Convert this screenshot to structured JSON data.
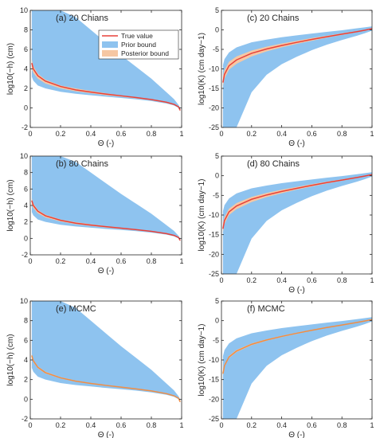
{
  "colors": {
    "prior": "#8ec3ef",
    "posterior": "#f6c7a3",
    "true": "#e8413a",
    "mcmc": "#ef8d45",
    "axis": "#262626"
  },
  "chart_data": [
    {
      "id": "a",
      "type": "area",
      "title": "(a) 20 Chians",
      "xlabel": "Θ (-)",
      "ylabel": "log10(−h) (cm)",
      "xlim": [
        0,
        1
      ],
      "ylim": [
        -2,
        10
      ],
      "xticks": [
        "0",
        "0.2",
        "0.4",
        "0.6",
        "0.8",
        "1"
      ],
      "yticks": [
        "-2",
        "0",
        "2",
        "4",
        "6",
        "8",
        "10"
      ],
      "legend": {
        "position": "top-right",
        "entries": [
          "True value",
          "Prior bound",
          "Posterior bound"
        ]
      },
      "x": [
        0.01,
        0.02,
        0.05,
        0.1,
        0.2,
        0.3,
        0.4,
        0.5,
        0.6,
        0.7,
        0.8,
        0.9,
        0.95,
        0.98,
        0.99
      ],
      "series": [
        {
          "name": "Prior bound",
          "kind": "band",
          "lower": [
            3.2,
            2.8,
            2.3,
            2.0,
            1.65,
            1.45,
            1.3,
            1.15,
            1.02,
            0.88,
            0.7,
            0.45,
            0.25,
            0.0,
            -0.3
          ],
          "upper": [
            10,
            10,
            10,
            10,
            10,
            9.3,
            8.0,
            6.7,
            5.4,
            4.2,
            3.0,
            1.6,
            0.9,
            0.3,
            0.0
          ]
        },
        {
          "name": "Posterior bound",
          "kind": "band",
          "lower": [
            4.0,
            3.6,
            3.0,
            2.5,
            2.0,
            1.7,
            1.5,
            1.3,
            1.15,
            0.98,
            0.8,
            0.52,
            0.3,
            0.05,
            -0.35
          ],
          "upper": [
            5.0,
            4.3,
            3.5,
            2.9,
            2.3,
            2.0,
            1.75,
            1.5,
            1.3,
            1.1,
            0.9,
            0.62,
            0.4,
            0.15,
            -0.2
          ]
        },
        {
          "name": "True value",
          "kind": "line",
          "values": [
            4.6,
            4.0,
            3.3,
            2.75,
            2.2,
            1.85,
            1.62,
            1.42,
            1.24,
            1.06,
            0.86,
            0.58,
            0.36,
            0.1,
            -0.25
          ]
        }
      ]
    },
    {
      "id": "b",
      "type": "area",
      "title": "(b) 80 Chains",
      "xlabel": "Θ (-)",
      "ylabel": "log10(−h) (cm)",
      "xlim": [
        0,
        1
      ],
      "ylim": [
        -2,
        10
      ],
      "xticks": [
        "0",
        "0.2",
        "0.4",
        "0.6",
        "0.8",
        "1"
      ],
      "yticks": [
        "-2",
        "0",
        "2",
        "4",
        "6",
        "8",
        "10"
      ],
      "x": [
        0.01,
        0.02,
        0.05,
        0.1,
        0.2,
        0.3,
        0.4,
        0.5,
        0.6,
        0.7,
        0.8,
        0.9,
        0.95,
        0.98,
        0.99
      ],
      "series": [
        {
          "name": "Prior bound",
          "kind": "band",
          "lower": [
            3.2,
            2.8,
            2.3,
            2.0,
            1.65,
            1.45,
            1.3,
            1.15,
            1.02,
            0.88,
            0.7,
            0.45,
            0.25,
            0.0,
            -0.3
          ],
          "upper": [
            10,
            10,
            10,
            10,
            10,
            9.3,
            8.0,
            6.7,
            5.4,
            4.2,
            3.0,
            1.6,
            0.9,
            0.3,
            0.0
          ]
        },
        {
          "name": "Posterior bound",
          "kind": "band",
          "lower": [
            4.1,
            3.7,
            3.05,
            2.55,
            2.05,
            1.73,
            1.52,
            1.32,
            1.16,
            0.99,
            0.81,
            0.53,
            0.31,
            0.06,
            -0.34
          ],
          "upper": [
            4.9,
            4.25,
            3.45,
            2.88,
            2.3,
            1.97,
            1.72,
            1.5,
            1.3,
            1.1,
            0.9,
            0.62,
            0.4,
            0.14,
            -0.2
          ]
        },
        {
          "name": "True value",
          "kind": "line",
          "values": [
            4.6,
            4.0,
            3.3,
            2.75,
            2.2,
            1.85,
            1.62,
            1.42,
            1.24,
            1.06,
            0.86,
            0.58,
            0.36,
            0.1,
            -0.25
          ]
        }
      ]
    },
    {
      "id": "e",
      "type": "area",
      "title": "(e) MCMC",
      "xlabel": "Θ (-)",
      "ylabel": "log10(−h) (cm)",
      "xlim": [
        0,
        1
      ],
      "ylim": [
        -2,
        10
      ],
      "xticks": [
        "0",
        "0.2",
        "0.4",
        "0.6",
        "0.8",
        "1"
      ],
      "yticks": [
        "-2",
        "0",
        "2",
        "4",
        "6",
        "8",
        "10"
      ],
      "x": [
        0.01,
        0.02,
        0.05,
        0.1,
        0.2,
        0.3,
        0.4,
        0.5,
        0.6,
        0.7,
        0.8,
        0.9,
        0.95,
        0.98,
        0.99
      ],
      "series": [
        {
          "name": "Prior bound",
          "kind": "band",
          "lower": [
            3.2,
            2.8,
            2.3,
            2.0,
            1.65,
            1.45,
            1.3,
            1.15,
            1.02,
            0.88,
            0.7,
            0.45,
            0.25,
            0.0,
            -0.3
          ],
          "upper": [
            10,
            10,
            10,
            10,
            10,
            9.3,
            8.0,
            6.7,
            5.4,
            4.2,
            3.0,
            1.6,
            0.9,
            0.3,
            0.0
          ]
        },
        {
          "name": "Posterior bound",
          "kind": "band",
          "lower": [
            4.3,
            3.8,
            3.15,
            2.62,
            2.12,
            1.79,
            1.57,
            1.37,
            1.2,
            1.02,
            0.83,
            0.55,
            0.33,
            0.07,
            -0.32
          ],
          "upper": [
            4.6,
            4.05,
            3.35,
            2.8,
            2.25,
            1.9,
            1.66,
            1.46,
            1.27,
            1.08,
            0.88,
            0.6,
            0.38,
            0.12,
            -0.22
          ]
        },
        {
          "name": "True value",
          "kind": "line",
          "color": "mcmc",
          "values": [
            4.45,
            3.92,
            3.25,
            2.71,
            2.18,
            1.84,
            1.61,
            1.41,
            1.23,
            1.05,
            0.85,
            0.57,
            0.35,
            0.1,
            -0.27
          ]
        }
      ]
    },
    {
      "id": "c",
      "type": "area",
      "title": "(c) 20 Chains",
      "xlabel": "Θ (-)",
      "ylabel": "log10(K) (cm day−1)",
      "xlim": [
        0,
        1
      ],
      "ylim": [
        -25,
        5
      ],
      "xticks": [
        "0",
        "0.2",
        "0.4",
        "0.6",
        "0.8",
        "1"
      ],
      "yticks": [
        "-25",
        "-20",
        "-15",
        "-10",
        "-5",
        "0",
        "5"
      ],
      "x": [
        0.01,
        0.02,
        0.05,
        0.1,
        0.2,
        0.3,
        0.4,
        0.5,
        0.6,
        0.7,
        0.8,
        0.9,
        0.95,
        1.0
      ],
      "series": [
        {
          "name": "Prior bound",
          "kind": "band",
          "lower": [
            -25,
            -25,
            -25,
            -25,
            -16,
            -11.5,
            -8.8,
            -6.9,
            -5.2,
            -3.8,
            -2.6,
            -1.5,
            -0.9,
            -0.2
          ],
          "upper": [
            -9.0,
            -7.5,
            -5.8,
            -4.5,
            -3.2,
            -2.5,
            -1.9,
            -1.4,
            -0.95,
            -0.5,
            -0.1,
            0.4,
            0.65,
            0.9
          ]
        },
        {
          "name": "Posterior bound",
          "kind": "band",
          "lower": [
            -14.5,
            -12.5,
            -10.2,
            -8.7,
            -6.8,
            -5.5,
            -4.5,
            -3.6,
            -2.8,
            -2.0,
            -1.3,
            -0.6,
            -0.2,
            0.1
          ],
          "upper": [
            -12.0,
            -10.3,
            -8.2,
            -6.8,
            -5.3,
            -4.3,
            -3.5,
            -2.8,
            -2.1,
            -1.5,
            -0.9,
            -0.3,
            0.0,
            0.4
          ]
        },
        {
          "name": "True value",
          "kind": "line",
          "values": [
            -13.5,
            -11.4,
            -9.2,
            -7.7,
            -6.0,
            -4.9,
            -4.0,
            -3.2,
            -2.45,
            -1.75,
            -1.1,
            -0.45,
            -0.1,
            0.3
          ]
        }
      ]
    },
    {
      "id": "d",
      "type": "area",
      "title": "(d) 80 Chains",
      "xlabel": "Θ (-)",
      "ylabel": "log10(K) (cm day−1)",
      "xlim": [
        0,
        1
      ],
      "ylim": [
        -25,
        5
      ],
      "xticks": [
        "0",
        "0.2",
        "0.4",
        "0.6",
        "0.8",
        "1"
      ],
      "yticks": [
        "-25",
        "-20",
        "-15",
        "-10",
        "-5",
        "0",
        "5"
      ],
      "x": [
        0.01,
        0.02,
        0.05,
        0.1,
        0.2,
        0.3,
        0.4,
        0.5,
        0.6,
        0.7,
        0.8,
        0.9,
        0.95,
        1.0
      ],
      "series": [
        {
          "name": "Prior bound",
          "kind": "band",
          "lower": [
            -25,
            -25,
            -25,
            -25,
            -16,
            -11.5,
            -8.8,
            -6.9,
            -5.2,
            -3.8,
            -2.6,
            -1.5,
            -0.9,
            -0.2
          ],
          "upper": [
            -9.0,
            -7.5,
            -5.8,
            -4.5,
            -3.2,
            -2.5,
            -1.9,
            -1.4,
            -0.95,
            -0.5,
            -0.1,
            0.4,
            0.65,
            0.9
          ]
        },
        {
          "name": "Posterior bound",
          "kind": "band",
          "lower": [
            -14.3,
            -12.3,
            -10.0,
            -8.5,
            -6.7,
            -5.45,
            -4.45,
            -3.55,
            -2.75,
            -1.98,
            -1.28,
            -0.58,
            -0.18,
            0.12
          ],
          "upper": [
            -12.3,
            -10.5,
            -8.4,
            -6.95,
            -5.4,
            -4.38,
            -3.55,
            -2.85,
            -2.15,
            -1.52,
            -0.92,
            -0.32,
            -0.02,
            0.38
          ]
        },
        {
          "name": "True value",
          "kind": "line",
          "values": [
            -13.5,
            -11.4,
            -9.2,
            -7.7,
            -6.0,
            -4.9,
            -4.0,
            -3.2,
            -2.45,
            -1.75,
            -1.1,
            -0.45,
            -0.1,
            0.3
          ]
        }
      ]
    },
    {
      "id": "f",
      "type": "area",
      "title": "(f) MCMC",
      "xlabel": "Θ (-)",
      "ylabel": "log10(K) (cm day−1)",
      "xlim": [
        0,
        1
      ],
      "ylim": [
        -25,
        5
      ],
      "xticks": [
        "0",
        "0.2",
        "0.4",
        "0.6",
        "0.8",
        "1"
      ],
      "yticks": [
        "-25",
        "-20",
        "-15",
        "-10",
        "-5",
        "0",
        "5"
      ],
      "x": [
        0.01,
        0.02,
        0.05,
        0.1,
        0.2,
        0.3,
        0.4,
        0.5,
        0.6,
        0.7,
        0.8,
        0.9,
        0.95,
        1.0
      ],
      "series": [
        {
          "name": "Prior bound",
          "kind": "band",
          "lower": [
            -25,
            -25,
            -25,
            -25,
            -16,
            -11.5,
            -8.8,
            -6.9,
            -5.2,
            -3.8,
            -2.6,
            -1.5,
            -0.9,
            -0.2
          ],
          "upper": [
            -9.0,
            -7.5,
            -5.8,
            -4.5,
            -3.2,
            -2.5,
            -1.9,
            -1.4,
            -0.95,
            -0.5,
            -0.1,
            0.4,
            0.65,
            0.9
          ]
        },
        {
          "name": "Posterior bound",
          "kind": "band",
          "lower": [
            -13.9,
            -11.8,
            -9.55,
            -8.0,
            -6.25,
            -5.1,
            -4.18,
            -3.35,
            -2.58,
            -1.85,
            -1.18,
            -0.5,
            -0.13,
            0.22
          ],
          "upper": [
            -13.1,
            -11.1,
            -8.95,
            -7.45,
            -5.8,
            -4.72,
            -3.85,
            -3.05,
            -2.33,
            -1.65,
            -1.02,
            -0.38,
            -0.05,
            0.36
          ]
        },
        {
          "name": "True value",
          "kind": "line",
          "color": "mcmc",
          "values": [
            -13.5,
            -11.45,
            -9.25,
            -7.72,
            -6.02,
            -4.91,
            -4.01,
            -3.2,
            -2.45,
            -1.75,
            -1.1,
            -0.44,
            -0.09,
            0.29
          ]
        }
      ]
    }
  ]
}
